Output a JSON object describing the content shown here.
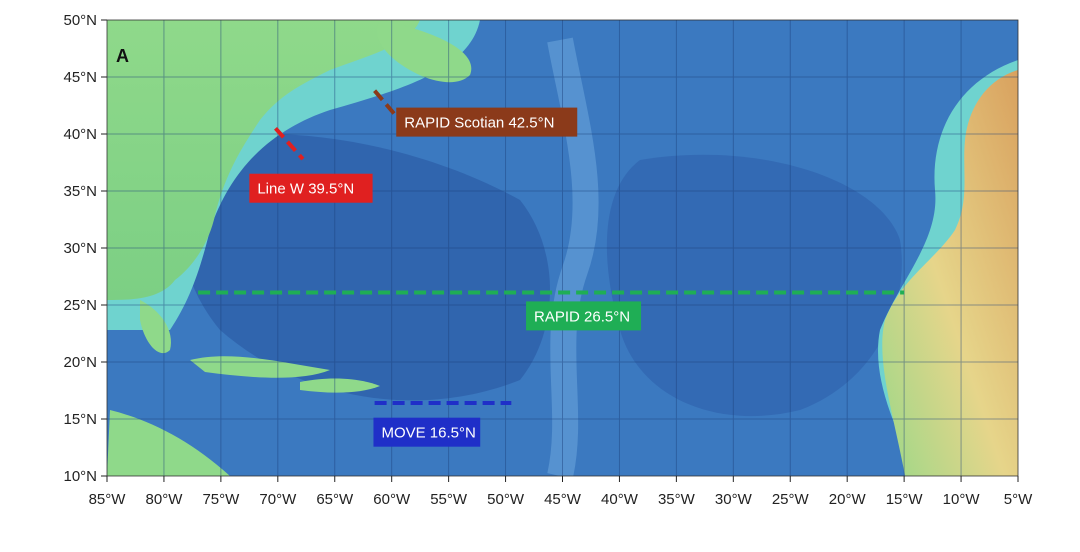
{
  "panel_label": "A",
  "y_ticks": [
    "50°N",
    "45°N",
    "40°N",
    "35°N",
    "30°N",
    "25°N",
    "20°N",
    "15°N",
    "10°N"
  ],
  "x_ticks": [
    "85°W",
    "80°W",
    "75°W",
    "70°W",
    "65°W",
    "60°W",
    "55°W",
    "50°W",
    "45°W",
    "40°W",
    "35°W",
    "30°W",
    "25°W",
    "20°W",
    "15°W",
    "10°W",
    "5°W"
  ],
  "sections": [
    {
      "label": "RAPID Scotian 42.5°N",
      "color": "#8b3a1a",
      "path_lonlat": [
        [
          -61.5,
          43.8
        ],
        [
          -59.8,
          41.8
        ]
      ]
    },
    {
      "label": "Line W 39.5°N",
      "color": "#e02020",
      "path_lonlat": [
        [
          -70.2,
          40.5
        ],
        [
          -67.8,
          37.8
        ]
      ]
    },
    {
      "label": "RAPID 26.5°N",
      "color": "#1fae55",
      "path_lonlat": [
        [
          -77.0,
          26.1
        ],
        [
          -15.0,
          26.1
        ]
      ]
    },
    {
      "label": "MOVE 16.5°N",
      "color": "#1f2fc8",
      "path_lonlat": [
        [
          -61.5,
          16.4
        ],
        [
          -49.5,
          16.4
        ]
      ]
    }
  ],
  "colors": {
    "ocean_deep": "#2d5fa8",
    "ocean_mid": "#3c7cc4",
    "shelf": "#6fd3cf",
    "land_low": "#8fd98a",
    "land_high": "#d9a15e",
    "grid": "#1c3f7a"
  }
}
